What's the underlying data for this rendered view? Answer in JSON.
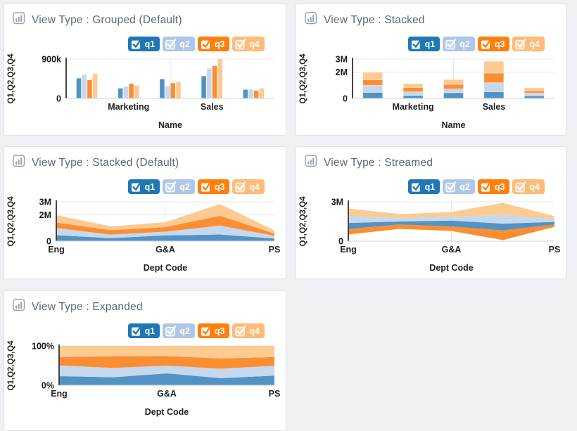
{
  "page": {
    "background": "#eef0f3"
  },
  "palette": {
    "legend": {
      "q1": "#1f77b4",
      "q2": "#aec7e8",
      "q3": "#ff7f0e",
      "q4": "#ffbb78"
    },
    "shapes": {
      "q1": "#5093c4",
      "q2": "#c5d8ed",
      "q3": "#fb8e33",
      "q4": "#fdca92"
    },
    "grid": "#e3e7ea",
    "axis": "#444444",
    "baseline": "#d6dadd",
    "tick_text": "#1a1a1a",
    "label_text": "#222222",
    "title_text": "#5c6770",
    "icon": "#97a1ab"
  },
  "legend": {
    "items": [
      {
        "id": "q1",
        "label": "q1",
        "checked": true,
        "style": "solid"
      },
      {
        "id": "q2",
        "label": "q2",
        "checked": true,
        "style": "light"
      },
      {
        "id": "q3",
        "label": "q3",
        "checked": true,
        "style": "solid"
      },
      {
        "id": "q4",
        "label": "q4",
        "checked": true,
        "style": "light"
      }
    ]
  },
  "chart_data": [
    {
      "title": "View Type : Grouped (Default)",
      "type": "bar",
      "variant": "grouped",
      "xlabel": "Name",
      "ylabel": "Q1,Q2,Q3,Q4",
      "categories": [
        "",
        "Marketing",
        "",
        "Sales",
        ""
      ],
      "series": [
        {
          "name": "q1",
          "values": [
            460000,
            230000,
            440000,
            510000,
            200000
          ]
        },
        {
          "name": "q2",
          "values": [
            540000,
            270000,
            280000,
            685000,
            205000
          ]
        },
        {
          "name": "q3",
          "values": [
            420000,
            335000,
            350000,
            740000,
            180000
          ]
        },
        {
          "name": "q4",
          "values": [
            565000,
            295000,
            375000,
            900000,
            230000
          ]
        }
      ],
      "ylim": [
        0,
        900000
      ],
      "yticks": [
        {
          "value": 0,
          "label": "0"
        },
        {
          "value": 900000,
          "label": "900k"
        }
      ],
      "legend_position": "top-right",
      "grid": true
    },
    {
      "title": "View Type : Stacked",
      "type": "bar",
      "variant": "stacked",
      "xlabel": "Name",
      "ylabel": "Q1,Q2,Q3,Q4",
      "categories": [
        "",
        "Marketing",
        "",
        "Sales",
        ""
      ],
      "series": [
        {
          "name": "q1",
          "values": [
            460000,
            230000,
            440000,
            510000,
            200000
          ]
        },
        {
          "name": "q2",
          "values": [
            540000,
            270000,
            280000,
            685000,
            205000
          ]
        },
        {
          "name": "q3",
          "values": [
            420000,
            335000,
            350000,
            740000,
            180000
          ]
        },
        {
          "name": "q4",
          "values": [
            565000,
            295000,
            375000,
            900000,
            230000
          ]
        }
      ],
      "ylim": [
        0,
        3000000
      ],
      "yticks": [
        {
          "value": 0,
          "label": "0"
        },
        {
          "value": 2000000,
          "label": "2M"
        },
        {
          "value": 3000000,
          "label": "3M"
        }
      ],
      "legend_position": "top-right",
      "grid": true
    },
    {
      "title": "View Type : Stacked (Default)",
      "type": "area",
      "variant": "stacked",
      "xlabel": "Dept Code",
      "ylabel": "Q1,Q2,Q3,Q4",
      "categories": [
        "Eng",
        "",
        "G&A",
        "",
        "PS"
      ],
      "series": [
        {
          "name": "q1",
          "values": [
            460000,
            230000,
            440000,
            510000,
            200000
          ]
        },
        {
          "name": "q2",
          "values": [
            540000,
            270000,
            280000,
            685000,
            205000
          ]
        },
        {
          "name": "q3",
          "values": [
            420000,
            335000,
            350000,
            740000,
            180000
          ]
        },
        {
          "name": "q4",
          "values": [
            565000,
            295000,
            375000,
            900000,
            230000
          ]
        }
      ],
      "ylim": [
        0,
        3000000
      ],
      "yticks": [
        {
          "value": 0,
          "label": "0"
        },
        {
          "value": 2000000,
          "label": "2M"
        },
        {
          "value": 3000000,
          "label": "3M"
        }
      ],
      "legend_position": "top-right",
      "grid": true
    },
    {
      "title": "View Type : Streamed",
      "type": "area",
      "variant": "stream",
      "offset": "silhouette",
      "stream_order": [
        "q3",
        "q1",
        "q2",
        "q4"
      ],
      "xlabel": "Dept Code",
      "ylabel": "Q1,Q2,Q3,Q4",
      "categories": [
        "Eng",
        "",
        "G&A",
        "",
        "PS"
      ],
      "series": [
        {
          "name": "q1",
          "values": [
            460000,
            230000,
            440000,
            510000,
            200000
          ]
        },
        {
          "name": "q2",
          "values": [
            540000,
            270000,
            280000,
            685000,
            205000
          ]
        },
        {
          "name": "q3",
          "values": [
            420000,
            335000,
            350000,
            740000,
            180000
          ]
        },
        {
          "name": "q4",
          "values": [
            565000,
            295000,
            375000,
            900000,
            230000
          ]
        }
      ],
      "ylim": [
        0,
        3000000
      ],
      "yticks": [
        {
          "value": 0,
          "label": "0"
        },
        {
          "value": 3000000,
          "label": "3M"
        }
      ],
      "legend_position": "top-right",
      "grid": true
    },
    {
      "title": "View Type : Expanded",
      "type": "area",
      "variant": "expanded",
      "xlabel": "Dept Code",
      "ylabel": "Q1,Q2,Q3,Q4",
      "categories": [
        "Eng",
        "",
        "G&A",
        "",
        "PS"
      ],
      "series": [
        {
          "name": "q1",
          "values": [
            460000,
            230000,
            440000,
            510000,
            200000
          ]
        },
        {
          "name": "q2",
          "values": [
            540000,
            270000,
            280000,
            685000,
            205000
          ]
        },
        {
          "name": "q3",
          "values": [
            420000,
            335000,
            350000,
            740000,
            180000
          ]
        },
        {
          "name": "q4",
          "values": [
            565000,
            295000,
            375000,
            900000,
            230000
          ]
        }
      ],
      "ylim": [
        0,
        100
      ],
      "yticks": [
        {
          "value": 0,
          "label": "0%"
        },
        {
          "value": 100,
          "label": "100%"
        }
      ],
      "legend_position": "top-right",
      "grid": true
    }
  ]
}
